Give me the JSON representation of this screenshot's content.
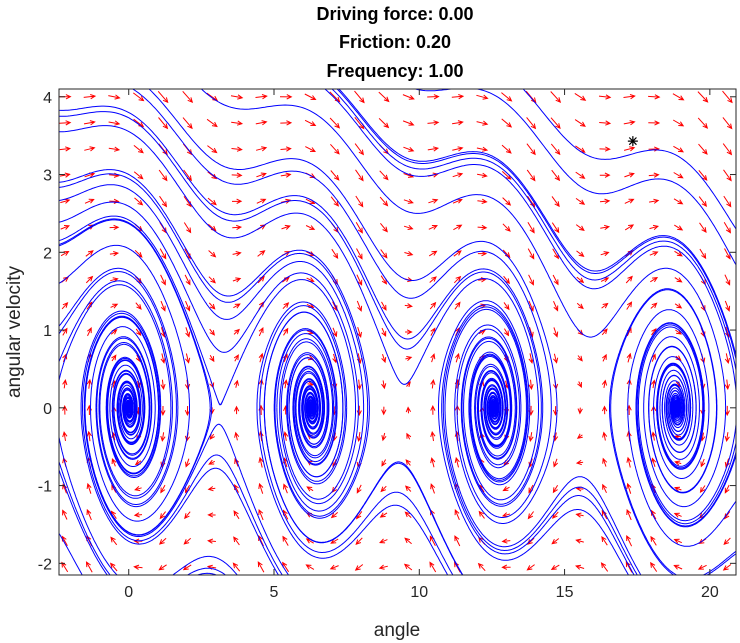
{
  "chart_data": {
    "type": "line",
    "title_lines": [
      "Driving force: 0.00",
      "Friction: 0.20",
      "Frequency: 1.00"
    ],
    "xlabel": "angle",
    "ylabel": "angular velocity",
    "xlim": [
      -2.4,
      20.9
    ],
    "ylim": [
      -2.15,
      4.1
    ],
    "xticks": [
      0,
      5,
      10,
      15,
      20
    ],
    "yticks": [
      -2,
      -1,
      0,
      1,
      2,
      3,
      4
    ],
    "grid": false,
    "legend": "none",
    "parameters": {
      "driving_force": 0.0,
      "friction": 0.2,
      "frequency": 1.0
    },
    "vector_field": {
      "name": "direction field",
      "color": "#ff0000",
      "x_range": [
        -2.2,
        20.6
      ],
      "y_range": [
        -2.05,
        4.0
      ],
      "nx": 28,
      "ny": 19
    },
    "trajectories": {
      "color": "#0000ff",
      "stable_foci": [
        [
          0,
          0
        ],
        [
          6.283,
          0
        ],
        [
          12.566,
          0
        ],
        [
          18.85,
          0
        ]
      ],
      "saddles": [
        [
          3.14,
          0
        ],
        [
          9.42,
          0
        ],
        [
          15.71,
          0
        ]
      ],
      "start_points": [
        [
          -2.4,
          3.55
        ],
        [
          -2.4,
          3.75
        ],
        [
          -2.4,
          2.9
        ],
        [
          -2.4,
          2.1
        ],
        [
          -2.4,
          2.15
        ],
        [
          -2.4,
          1.6
        ],
        [
          -2.4,
          0.35
        ],
        [
          -2.4,
          1.05
        ],
        [
          -2.4,
          -0.8
        ],
        [
          2.5,
          4.1
        ],
        [
          7.0,
          4.1
        ],
        [
          12.0,
          4.1
        ],
        [
          -1.6,
          -2.15
        ],
        [
          5.5,
          -2.15
        ],
        [
          11.5,
          -2.15
        ],
        [
          17.5,
          -2.15
        ],
        [
          1.1,
          0.0
        ],
        [
          -1.1,
          0.0
        ],
        [
          0.6,
          0.9
        ],
        [
          0.0,
          1.6
        ],
        [
          0.0,
          -1.6
        ],
        [
          7.5,
          0.0
        ],
        [
          5.1,
          0.0
        ],
        [
          6.283,
          1.7
        ],
        [
          6.283,
          -1.7
        ],
        [
          6.9,
          1.0
        ],
        [
          13.8,
          0.0
        ],
        [
          11.3,
          0.0
        ],
        [
          12.566,
          1.75
        ],
        [
          12.566,
          -1.75
        ],
        [
          13.2,
          1.0
        ],
        [
          19.8,
          0.0
        ],
        [
          17.9,
          0.0
        ],
        [
          18.85,
          1.5
        ],
        [
          18.85,
          -1.5
        ],
        [
          2.4,
          1.7
        ],
        [
          8.8,
          1.9
        ],
        [
          14.9,
          1.9
        ],
        [
          20.9,
          2.3
        ],
        [
          20.9,
          -1.2
        ]
      ]
    },
    "marker": {
      "symbol": "*",
      "x": 17.35,
      "y": 3.43,
      "color": "#000000"
    }
  }
}
